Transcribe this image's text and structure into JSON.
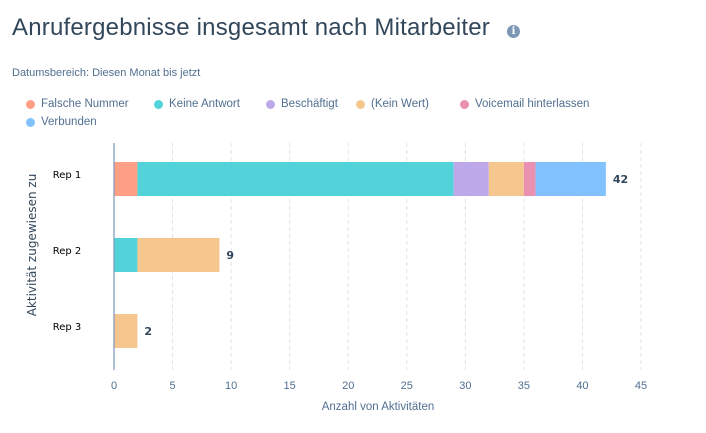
{
  "header": {
    "title": "Anrufergebnisse insgesamt nach Mitarbeiter",
    "info_icon": "info-circle-icon",
    "date_range_label": "Datumsbereich:",
    "date_range_value": "Diesen Monat bis jetzt"
  },
  "chart_data": {
    "type": "bar",
    "orientation": "horizontal",
    "stacked": true,
    "title": "Anrufergebnisse insgesamt nach Mitarbeiter",
    "xlabel": "Anzahl von Aktivitäten",
    "ylabel": "Aktivität zugewiesen zu",
    "categories": [
      "Rep 1",
      "Rep 2",
      "Rep 3"
    ],
    "xlim": [
      0,
      45
    ],
    "xticks": [
      0,
      5,
      10,
      15,
      20,
      25,
      30,
      35,
      40,
      45
    ],
    "grid": true,
    "legend_position": "top-left",
    "series": [
      {
        "name": "Falsche Nummer",
        "color": "#ff9f86",
        "values": [
          2,
          0,
          0
        ]
      },
      {
        "name": "Keine Antwort",
        "color": "#51d3d9",
        "values": [
          27,
          2,
          0
        ]
      },
      {
        "name": "Beschäftigt",
        "color": "#bda9ea",
        "values": [
          3,
          0,
          0
        ]
      },
      {
        "name": "(Kein Wert)",
        "color": "#f5c78e",
        "values": [
          3,
          7,
          2
        ]
      },
      {
        "name": "Voicemail hinterlassen",
        "color": "#ea90b1",
        "values": [
          1,
          0,
          0
        ]
      },
      {
        "name": "Verbunden",
        "color": "#81c1fd",
        "values": [
          6,
          0,
          0
        ]
      }
    ],
    "totals": [
      42,
      9,
      2
    ]
  }
}
